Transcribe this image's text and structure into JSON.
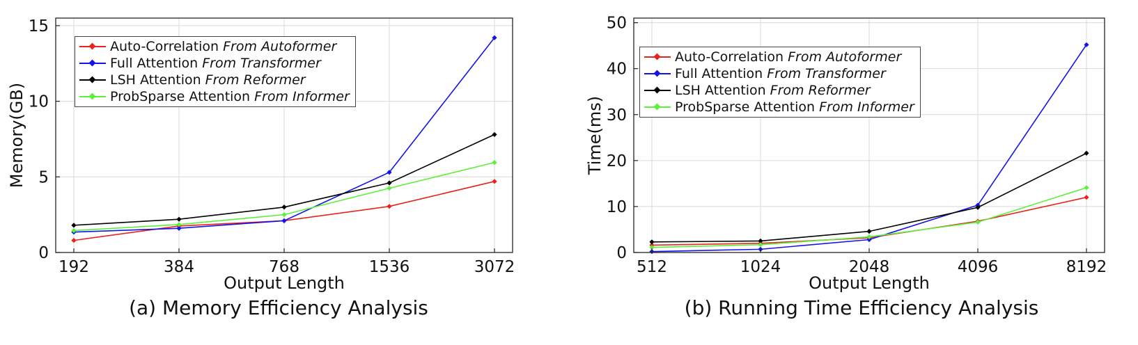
{
  "chart_data": [
    {
      "type": "line",
      "caption": "(a) Memory Efficiency Analysis",
      "xlabel": "Output Length",
      "ylabel": "Memory(GB)",
      "categories": [
        "192",
        "384",
        "768",
        "1536",
        "3072"
      ],
      "ylim": [
        0,
        15.5
      ],
      "yticks": [
        "0",
        "5",
        "10",
        "15"
      ],
      "ytick_values": [
        0,
        5,
        10,
        15
      ],
      "grid": true,
      "legend_position": "top-left",
      "series": [
        {
          "name": "Auto-Correlation",
          "source": "From Autoformer",
          "color": "#e8231c",
          "values": [
            0.8,
            1.75,
            2.1,
            3.05,
            4.7
          ]
        },
        {
          "name": "Full Attention",
          "source": "From Transformer",
          "color": "#1414e6",
          "values": [
            1.35,
            1.6,
            2.1,
            5.3,
            14.2
          ]
        },
        {
          "name": "LSH Attention",
          "source": "From Reformer",
          "color": "#000000",
          "values": [
            1.8,
            2.2,
            3.0,
            4.6,
            7.8
          ]
        },
        {
          "name": "ProbSparse Attention",
          "source": "From Informer",
          "color": "#5cf03c",
          "values": [
            1.45,
            1.85,
            2.5,
            4.25,
            5.95
          ]
        }
      ]
    },
    {
      "type": "line",
      "caption": "(b) Running Time Efficiency Analysis",
      "xlabel": "Output Length",
      "ylabel": "Time(ms)",
      "categories": [
        "512",
        "1024",
        "2048",
        "4096",
        "8192"
      ],
      "ylim": [
        0,
        51
      ],
      "yticks": [
        "0",
        "10",
        "20",
        "30",
        "40",
        "50"
      ],
      "ytick_values": [
        0,
        10,
        20,
        30,
        40,
        50
      ],
      "grid": true,
      "legend_position": "top-left",
      "series": [
        {
          "name": "Auto-Correlation",
          "source": "From Autoformer",
          "color": "#e8231c",
          "values": [
            1.6,
            2.0,
            3.2,
            6.8,
            12.0
          ]
        },
        {
          "name": "Full Attention",
          "source": "From Transformer",
          "color": "#1414e6",
          "values": [
            0.2,
            0.7,
            2.8,
            10.3,
            45.2
          ]
        },
        {
          "name": "LSH Attention",
          "source": "From Reformer",
          "color": "#000000",
          "values": [
            2.3,
            2.5,
            4.6,
            9.8,
            21.6
          ]
        },
        {
          "name": "ProbSparse Attention",
          "source": "From Informer",
          "color": "#5cf03c",
          "values": [
            1.1,
            1.7,
            3.4,
            6.6,
            14.1
          ]
        }
      ]
    }
  ]
}
